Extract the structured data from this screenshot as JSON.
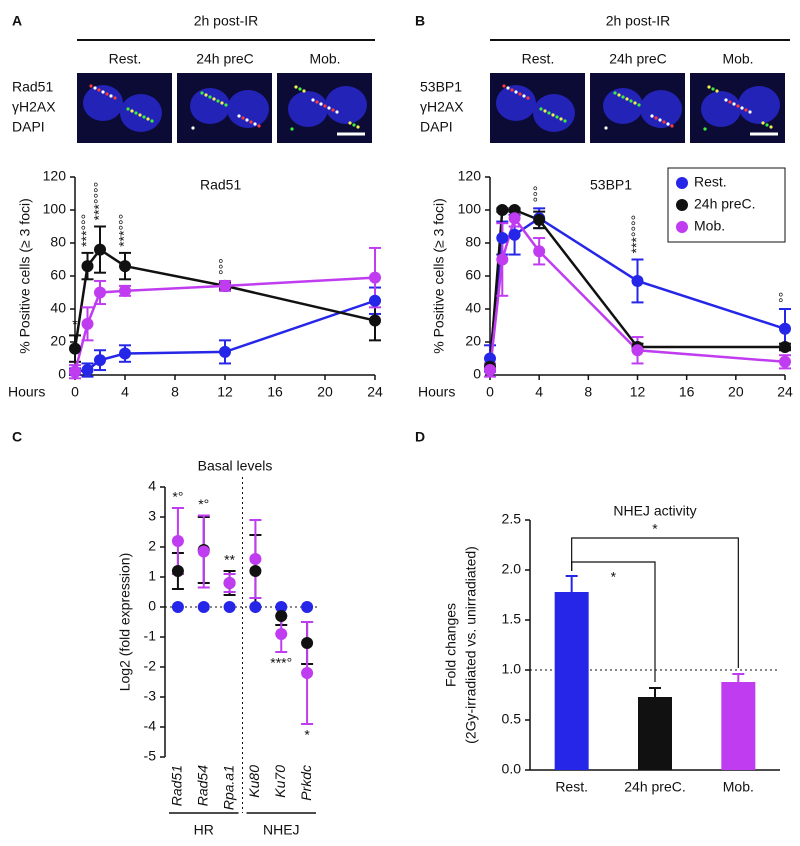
{
  "chart_data": [
    {
      "type": "line",
      "panel": "A",
      "header": "2h post-IR",
      "image_labels": [
        "Rest.",
        "24h preC",
        "Mob."
      ],
      "channels": [
        {
          "name": "Rad51",
          "color": "#e0201e"
        },
        {
          "name": "γH2AX",
          "color": "#22c222"
        },
        {
          "name": "DAPI",
          "color": "#2f2fe0"
        }
      ],
      "title": "Rad51",
      "ylabel": "% Positive cells (≥ 3 foci)",
      "xlabel": "Hours",
      "x": [
        0,
        1,
        2,
        4,
        12,
        24
      ],
      "xlim": [
        0,
        24
      ],
      "xticks": [
        0,
        4,
        8,
        12,
        16,
        20,
        24
      ],
      "ylim": [
        0,
        120
      ],
      "yticks": [
        0,
        20,
        40,
        60,
        80,
        100,
        120
      ],
      "series": [
        {
          "color": "#2626e8",
          "values": [
            2,
            3,
            9,
            13,
            14,
            45
          ],
          "errors": [
            2,
            4,
            6,
            5,
            7,
            8
          ]
        },
        {
          "color": "#111111",
          "values": [
            16,
            66,
            76,
            66,
            54,
            33
          ],
          "errors": [
            8,
            8,
            14,
            8,
            2,
            12
          ]
        },
        {
          "color": "#c03cf0",
          "values": [
            2,
            31,
            50,
            51,
            54,
            59
          ],
          "errors": [
            4,
            10,
            7,
            3,
            3,
            18
          ]
        }
      ],
      "annotations": [
        {
          "x": 0,
          "label": "*"
        },
        {
          "x": 1,
          "label": "***°°°"
        },
        {
          "x": 2,
          "label": "***°°°°"
        },
        {
          "x": 4,
          "label": "***°°°"
        },
        {
          "x": 12,
          "label": "°°°"
        }
      ]
    },
    {
      "type": "line",
      "panel": "B",
      "header": "2h post-IR",
      "image_labels": [
        "Rest.",
        "24h preC",
        "Mob."
      ],
      "channels": [
        {
          "name": "53BP1",
          "color": "#e0201e"
        },
        {
          "name": "γH2AX",
          "color": "#22c222"
        },
        {
          "name": "DAPI",
          "color": "#2f2fe0"
        }
      ],
      "title": "53BP1",
      "ylabel": "% Positive cells (≥ 3 foci)",
      "xlabel": "Hours",
      "x": [
        0,
        1,
        2,
        4,
        12,
        24
      ],
      "xlim": [
        0,
        24
      ],
      "xticks": [
        0,
        4,
        8,
        12,
        16,
        20,
        24
      ],
      "ylim": [
        0,
        120
      ],
      "yticks": [
        0,
        20,
        40,
        60,
        80,
        100,
        120
      ],
      "legend": "top-right",
      "series": [
        {
          "name": "Rest.",
          "color": "#2626e8",
          "values": [
            10,
            83,
            85,
            95,
            57,
            28
          ],
          "errors": [
            8,
            10,
            12,
            6,
            13,
            12
          ]
        },
        {
          "name": "24h preC.",
          "color": "#111111",
          "values": [
            5,
            100,
            100,
            94,
            17,
            17
          ],
          "errors": [
            2,
            1,
            1,
            5,
            2,
            2
          ]
        },
        {
          "name": "Mob.",
          "color": "#c03cf0",
          "values": [
            3,
            70,
            95,
            75,
            15,
            8
          ],
          "errors": [
            4,
            22,
            5,
            8,
            8,
            4
          ]
        }
      ],
      "annotations": [
        {
          "x": 4,
          "label": "°°°"
        },
        {
          "x": 12,
          "label": "***°°°°"
        },
        {
          "x": 24,
          "label": "°°"
        }
      ]
    },
    {
      "type": "dot",
      "panel": "C",
      "title": "Basal levels",
      "ylabel": "Log2 (fold expression)",
      "categories": [
        "Rad51",
        "Rad54",
        "Rpa.a1",
        "Ku80",
        "Ku70",
        "Prkdc"
      ],
      "groups": [
        "HR",
        "HR",
        "HR",
        "NHEJ",
        "NHEJ",
        "NHEJ"
      ],
      "ylim": [
        -5,
        4
      ],
      "yticks": [
        -5,
        -4,
        -3,
        -2,
        -1,
        0,
        1,
        2,
        3,
        4
      ],
      "reference_line": 0,
      "series": [
        {
          "color": "#2626e8",
          "values": [
            0,
            0,
            0,
            0,
            0,
            0
          ]
        },
        {
          "color": "#111111",
          "values": [
            1.2,
            1.9,
            0.8,
            1.2,
            -0.3,
            -1.2
          ],
          "errors": [
            0.6,
            1.1,
            0.4,
            1.2,
            0.3,
            0.7
          ]
        },
        {
          "color": "#c03cf0",
          "values": [
            2.2,
            1.85,
            0.8,
            1.6,
            -0.9,
            -2.2
          ],
          "errors": [
            1.1,
            1.2,
            0.3,
            1.3,
            0.6,
            1.7
          ]
        }
      ],
      "annotations": [
        {
          "category": "Rad51",
          "label": "*°",
          "side": "above"
        },
        {
          "category": "Rad54",
          "label": "*°",
          "side": "above"
        },
        {
          "category": "Rpa.a1",
          "label": "**",
          "side": "above"
        },
        {
          "category": "Ku70",
          "label": "***°",
          "side": "below"
        },
        {
          "category": "Prkdc",
          "label": "*",
          "side": "below"
        }
      ]
    },
    {
      "type": "bar",
      "panel": "D",
      "title": "NHEJ activity",
      "ylabel": [
        "Fold changes",
        "(2Gy-irradiated vs. unirradiated)"
      ],
      "categories": [
        "Rest.",
        "24h preC.",
        "Mob."
      ],
      "values": [
        1.78,
        0.73,
        0.88
      ],
      "errors": [
        0.16,
        0.09,
        0.08
      ],
      "colors": [
        "#2626e8",
        "#111111",
        "#c03cf0"
      ],
      "ylim": [
        0,
        2.5
      ],
      "yticks": [
        {
          "value": 0,
          "label": "0.0"
        },
        0.5,
        {
          "value": 1,
          "label": "1.0"
        },
        1.5,
        {
          "value": 2,
          "label": "2.0"
        },
        2.5
      ],
      "reference_line": 1,
      "comparisons": [
        {
          "from": "Rest.",
          "to": "24h preC.",
          "label": "*"
        },
        {
          "from": "Rest.",
          "to": "Mob.",
          "label": "*"
        }
      ]
    }
  ]
}
